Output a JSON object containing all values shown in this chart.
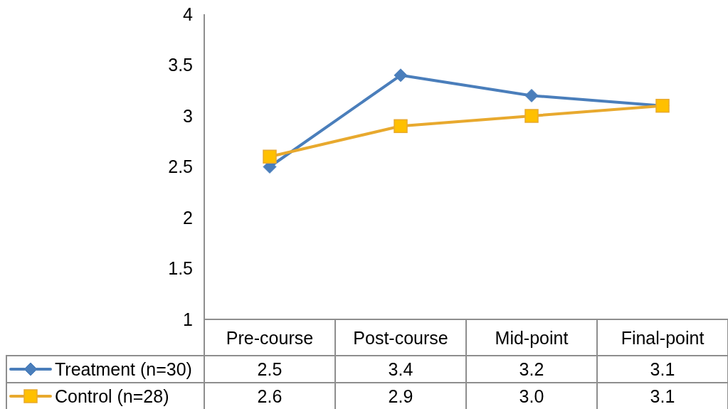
{
  "chart_data": {
    "type": "line",
    "categories": [
      "Pre-course",
      "Post-course",
      "Mid-point",
      "Final-point"
    ],
    "series": [
      {
        "name": "Treatment (n=30)",
        "color": "#4a7ebb",
        "marker": "diamond",
        "values": [
          2.5,
          3.4,
          3.2,
          3.1
        ],
        "value_labels": [
          "2.5",
          "3.4",
          "3.2",
          "3.1"
        ]
      },
      {
        "name": "Control (n=28)",
        "color": "#e8a92e",
        "colors": [
          "#ffc000",
          "#ffc000",
          "#ffc000",
          "#ffc000"
        ],
        "marker": "square",
        "values": [
          2.6,
          2.9,
          3.0,
          3.1
        ],
        "value_labels": [
          "2.6",
          "2.9",
          "3.0",
          "3.1"
        ]
      }
    ],
    "ylim": [
      1,
      4
    ],
    "yticks": [
      1,
      1.5,
      2,
      2.5,
      3,
      3.5,
      4
    ],
    "legend": "bottom left"
  }
}
